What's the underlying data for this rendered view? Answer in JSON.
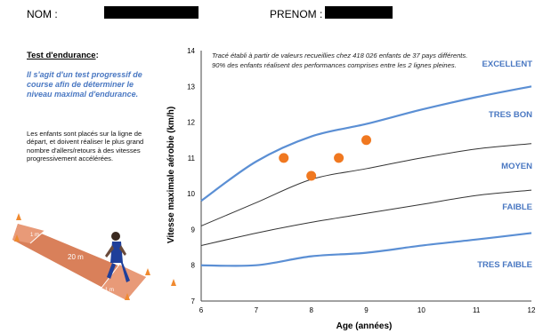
{
  "header": {
    "nom_label": "NOM :",
    "prenom_label": "PRENOM :"
  },
  "left_panel": {
    "title": "Test d'endurance",
    "title_suffix": " :",
    "description": "Il s'agit d'un test progressif de course afin de déterminer le niveau maximal d'endurance.",
    "body": "Les enfants sont placés sur la ligne de départ, et doivent réaliser le plus grand nombre d'allers/retours à des vitesses progressivement accélérées.",
    "field_length_label": "20 m",
    "zone_label_1": "1 m",
    "zone_label_2": "1 m"
  },
  "colors": {
    "curve_blue": "#5b8fd4",
    "curve_dark": "#333333",
    "point": "#f07820",
    "level_text": "#4a78c2"
  },
  "chart_data": {
    "type": "line",
    "title": "",
    "note": "Tracé établi à partir de valeurs recueillies chez 418 026 enfants de 37 pays différents. 90% des enfants réalisent des performances comprises entre les 2 lignes pleines.",
    "xlabel": "Age (années)",
    "ylabel": "Vitesse maximale aérobie (km/h)",
    "xlim": [
      6,
      12
    ],
    "ylim": [
      7,
      14
    ],
    "x_ticks": [
      "6",
      "7",
      "8",
      "9",
      "10",
      "11",
      "12"
    ],
    "y_ticks": [
      "7",
      "8",
      "9",
      "10",
      "11",
      "12",
      "13",
      "14"
    ],
    "x": [
      6,
      7,
      8,
      9,
      10,
      11,
      12
    ],
    "series": [
      {
        "name": "",
        "style": "thick-blue",
        "values": [
          9.8,
          10.9,
          11.6,
          11.95,
          12.35,
          12.7,
          13.0
        ]
      },
      {
        "name": "",
        "style": "thin-dark",
        "values": [
          9.1,
          9.75,
          10.4,
          10.7,
          11.0,
          11.25,
          11.4
        ]
      },
      {
        "name": "",
        "style": "thin-dark",
        "values": [
          8.55,
          8.9,
          9.2,
          9.45,
          9.7,
          9.95,
          10.1
        ]
      },
      {
        "name": "",
        "style": "thick-blue",
        "values": [
          8.0,
          8.0,
          8.25,
          8.35,
          8.55,
          8.72,
          8.9
        ]
      }
    ],
    "points": [
      {
        "x": 7.5,
        "y": 11.0
      },
      {
        "x": 8.0,
        "y": 10.5
      },
      {
        "x": 8.5,
        "y": 11.0
      },
      {
        "x": 9.0,
        "y": 11.5
      }
    ],
    "levels": [
      {
        "label": "EXCELLENT",
        "y": 13.6
      },
      {
        "label": "TRES BON",
        "y": 12.2
      },
      {
        "label": "MOYEN",
        "y": 10.75
      },
      {
        "label": "FAIBLE",
        "y": 9.6
      },
      {
        "label": "TRES FAIBLE",
        "y": 8.0
      }
    ],
    "grid": false
  }
}
